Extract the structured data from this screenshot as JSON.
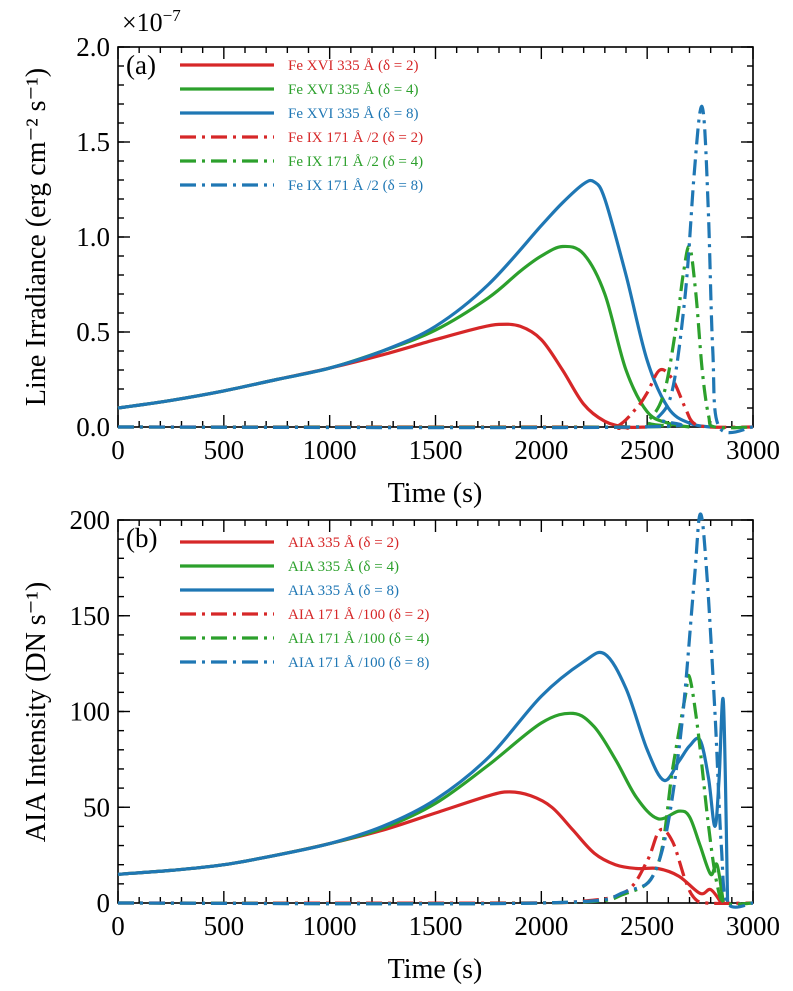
{
  "colors": {
    "red": "#d62728",
    "green": "#2ca02c",
    "blue": "#1f77b4"
  },
  "chart_data": [
    {
      "id": "a",
      "type": "line",
      "panel_label": "(a)",
      "exponent_label": "×10",
      "exponent_power": "−7",
      "xlabel": "Time (s)",
      "ylabel": "Line Irradiance (erg cm⁻² s⁻¹)",
      "xlim": [
        0,
        3000
      ],
      "ylim": [
        0,
        2.0
      ],
      "xticks": [
        0,
        500,
        1000,
        1500,
        2000,
        2500,
        3000
      ],
      "xtick_labels": [
        "0",
        "500",
        "1000",
        "1500",
        "2000",
        "2500",
        "3000"
      ],
      "yticks": [
        0,
        0.5,
        1.0,
        1.5,
        2.0
      ],
      "ytick_labels": [
        "0.0",
        "0.5",
        "1.0",
        "1.5",
        "2.0"
      ],
      "legend_position": "top-left",
      "series": [
        {
          "name": "Fe XVI 335 Å  (δ = 2)",
          "color": "red",
          "dash": "solid",
          "x": [
            0,
            250,
            500,
            750,
            1000,
            1250,
            1500,
            1700,
            1800,
            1900,
            2000,
            2100,
            2200,
            2300,
            2400,
            2500
          ],
          "y": [
            0.1,
            0.14,
            0.19,
            0.25,
            0.31,
            0.38,
            0.46,
            0.52,
            0.54,
            0.53,
            0.46,
            0.3,
            0.12,
            0.03,
            0.0,
            0.0
          ]
        },
        {
          "name": "Fe XVI 335 Å  (δ = 4)",
          "color": "green",
          "dash": "solid",
          "x": [
            0,
            250,
            500,
            750,
            1000,
            1250,
            1500,
            1750,
            1900,
            2000,
            2100,
            2200,
            2300,
            2400,
            2500,
            2600,
            2700
          ],
          "y": [
            0.1,
            0.14,
            0.19,
            0.25,
            0.31,
            0.4,
            0.51,
            0.68,
            0.82,
            0.9,
            0.95,
            0.91,
            0.7,
            0.3,
            0.08,
            0.02,
            0.0
          ]
        },
        {
          "name": "Fe XVI 335 Å  (δ = 8)",
          "color": "blue",
          "dash": "solid",
          "x": [
            0,
            250,
            500,
            750,
            1000,
            1250,
            1500,
            1750,
            2000,
            2100,
            2200,
            2250,
            2300,
            2400,
            2500,
            2600,
            2700,
            2800
          ],
          "y": [
            0.1,
            0.14,
            0.19,
            0.25,
            0.31,
            0.4,
            0.53,
            0.75,
            1.06,
            1.18,
            1.28,
            1.29,
            1.2,
            0.8,
            0.35,
            0.1,
            0.02,
            0.0
          ]
        },
        {
          "name": "Fe IX 171 Å /2  (δ = 2)",
          "color": "red",
          "dash": "dashdot",
          "x": [
            0,
            2200,
            2350,
            2450,
            2500,
            2560,
            2620,
            2680,
            2720,
            2800,
            3000
          ],
          "y": [
            0,
            0,
            0.0,
            0.1,
            0.18,
            0.3,
            0.25,
            0.1,
            0.02,
            0,
            0
          ]
        },
        {
          "name": "Fe IX 171 Å /2  (δ = 4)",
          "color": "green",
          "dash": "dashdot",
          "x": [
            0,
            2400,
            2500,
            2580,
            2640,
            2670,
            2700,
            2730,
            2760,
            2790,
            2820,
            3000
          ],
          "y": [
            0,
            0,
            0.03,
            0.18,
            0.55,
            0.8,
            0.95,
            0.7,
            0.3,
            0.06,
            0,
            0
          ]
        },
        {
          "name": "Fe IX 171 Å /2  (δ = 8)",
          "color": "blue",
          "dash": "dashdot",
          "x": [
            0,
            2450,
            2550,
            2620,
            2680,
            2720,
            2750,
            2770,
            2790,
            2810,
            2840,
            3000
          ],
          "y": [
            0,
            0,
            0.05,
            0.2,
            0.7,
            1.3,
            1.66,
            1.6,
            1.1,
            0.4,
            0,
            0
          ]
        }
      ]
    },
    {
      "id": "b",
      "type": "line",
      "panel_label": "(b)",
      "xlabel": "Time (s)",
      "ylabel": "AIA Intensity (DN s⁻¹)",
      "xlim": [
        0,
        3000
      ],
      "ylim": [
        0,
        200
      ],
      "xticks": [
        0,
        500,
        1000,
        1500,
        2000,
        2500,
        3000
      ],
      "xtick_labels": [
        "0",
        "500",
        "1000",
        "1500",
        "2000",
        "2500",
        "3000"
      ],
      "yticks": [
        0,
        50,
        100,
        150,
        200
      ],
      "ytick_labels": [
        "0",
        "50",
        "100",
        "150",
        "200"
      ],
      "legend_position": "top-left",
      "series": [
        {
          "name": "AIA 335 Å  (δ = 2)",
          "color": "red",
          "dash": "solid",
          "x": [
            0,
            250,
            500,
            750,
            1000,
            1250,
            1500,
            1750,
            1850,
            1950,
            2050,
            2150,
            2250,
            2350,
            2450,
            2550,
            2650,
            2750,
            2800,
            2850
          ],
          "y": [
            15,
            17,
            20,
            25,
            31,
            38,
            47,
            56,
            58,
            56,
            50,
            38,
            26,
            20,
            18,
            18,
            14,
            5,
            7,
            0
          ]
        },
        {
          "name": "AIA 335 Å  (δ = 4)",
          "color": "green",
          "dash": "solid",
          "x": [
            0,
            250,
            500,
            750,
            1000,
            1250,
            1500,
            1750,
            2000,
            2150,
            2250,
            2350,
            2450,
            2550,
            2650,
            2700,
            2750,
            2800,
            2830,
            2860
          ],
          "y": [
            15,
            17,
            20,
            25,
            31,
            39,
            52,
            72,
            94,
            99,
            92,
            75,
            55,
            44,
            48,
            45,
            30,
            15,
            20,
            0
          ]
        },
        {
          "name": "AIA 335 Å  (δ = 8)",
          "color": "blue",
          "dash": "solid",
          "x": [
            0,
            250,
            500,
            750,
            1000,
            1250,
            1500,
            1750,
            2000,
            2200,
            2300,
            2400,
            2500,
            2580,
            2650,
            2700,
            2750,
            2790,
            2820,
            2840,
            2860,
            2880
          ],
          "y": [
            15,
            17,
            20,
            25,
            31,
            40,
            54,
            76,
            108,
            126,
            130,
            112,
            80,
            64,
            74,
            82,
            85,
            65,
            40,
            65,
            105,
            0
          ]
        },
        {
          "name": "AIA 171 Å /100  (δ = 2)",
          "color": "red",
          "dash": "dashdot",
          "x": [
            0,
            1800,
            2200,
            2400,
            2500,
            2560,
            2620,
            2680,
            2720,
            2780,
            3000
          ],
          "y": [
            0,
            0,
            1,
            6,
            22,
            38,
            32,
            12,
            3,
            0,
            0
          ]
        },
        {
          "name": "AIA 171 Å /100  (δ = 4)",
          "color": "green",
          "dash": "dashdot",
          "x": [
            0,
            2000,
            2400,
            2550,
            2620,
            2680,
            2700,
            2740,
            2790,
            2830,
            2870,
            3000
          ],
          "y": [
            0,
            0,
            5,
            20,
            70,
            108,
            118,
            90,
            40,
            10,
            0,
            0
          ]
        },
        {
          "name": "AIA 171 Å /100  (δ = 8)",
          "color": "blue",
          "dash": "dashdot",
          "x": [
            0,
            2000,
            2400,
            2550,
            2650,
            2720,
            2750,
            2780,
            2820,
            2850,
            2880,
            3000
          ],
          "y": [
            0,
            0,
            6,
            20,
            80,
            165,
            203,
            175,
            100,
            30,
            0,
            0
          ]
        }
      ]
    }
  ]
}
